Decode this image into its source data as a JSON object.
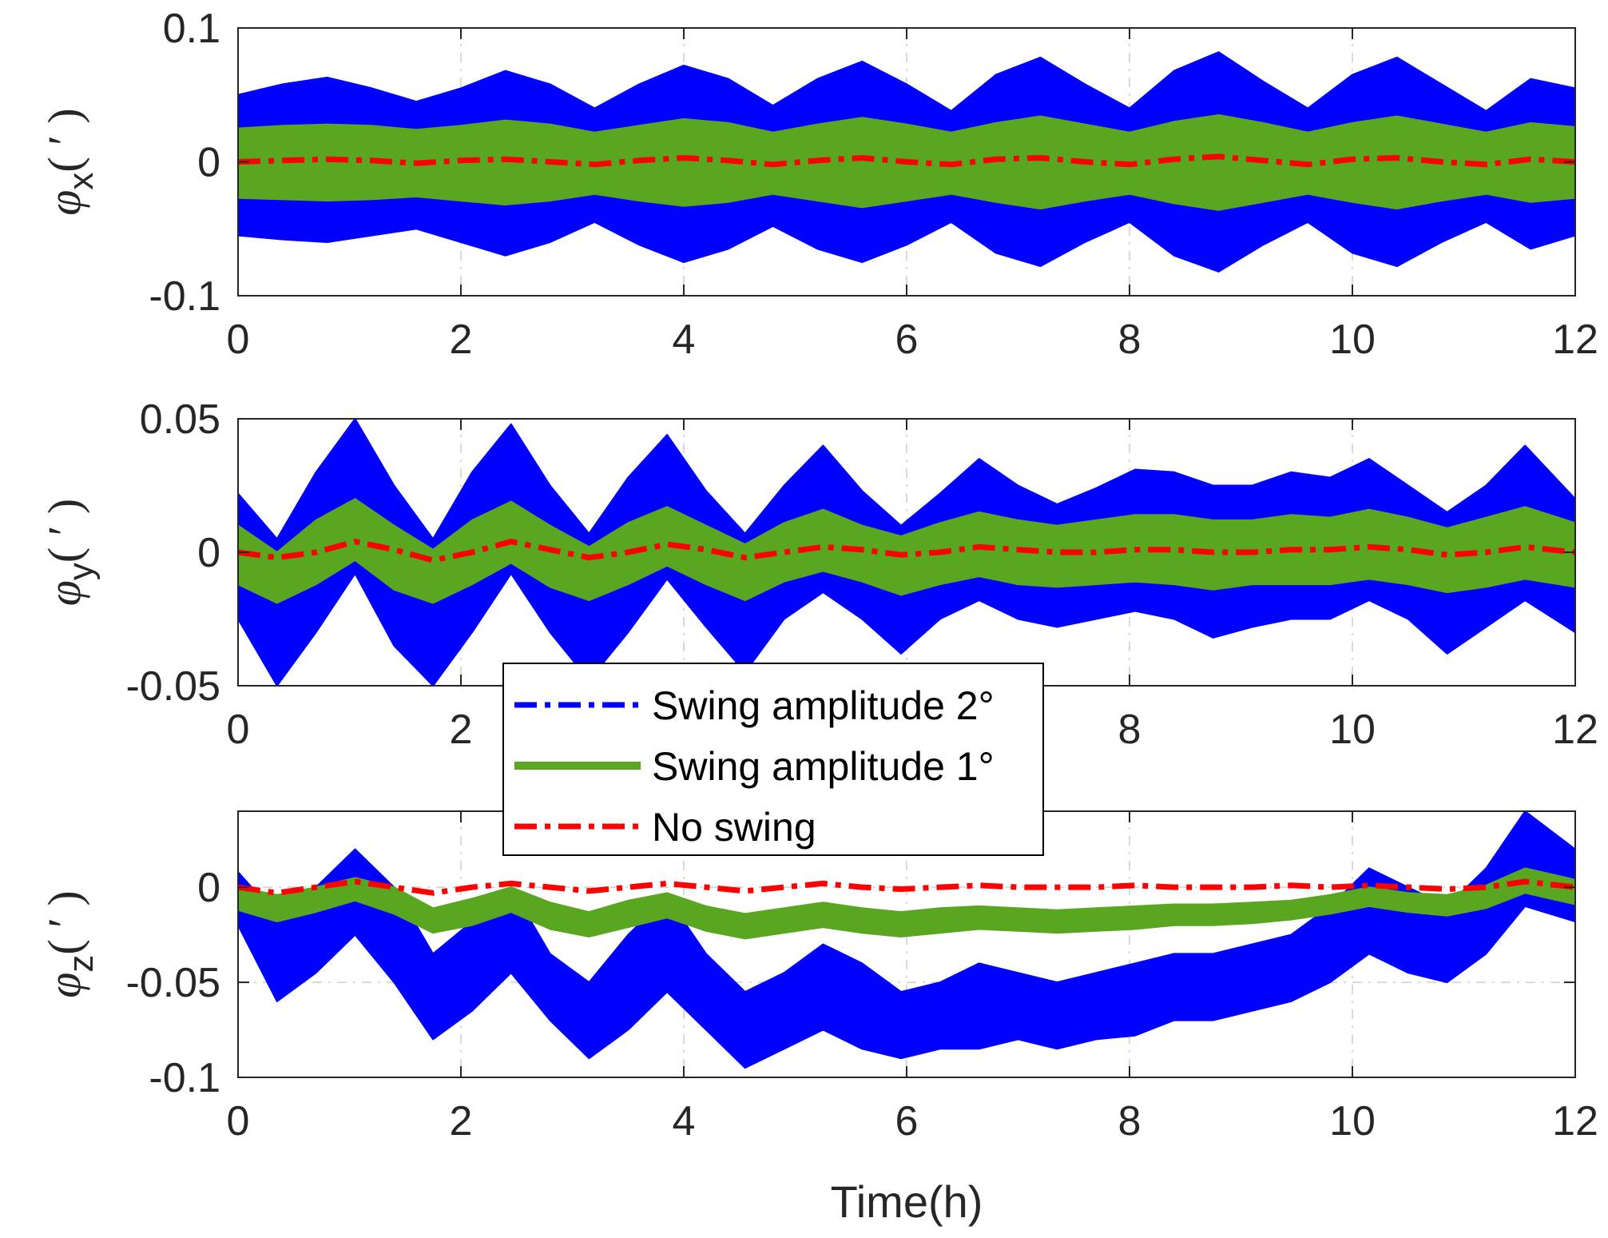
{
  "figure": {
    "xlabel": "Time(h)"
  },
  "colors": {
    "swing2": "#0000ff",
    "swing1": "#59a620",
    "noswing": "#ff0000",
    "axis": "#262626",
    "grid": "#d9d9d9"
  },
  "legend": {
    "items": [
      {
        "label": "Swing amplitude 2°",
        "series": "swing2",
        "style": "dash-dot"
      },
      {
        "label": "Swing amplitude 1°",
        "series": "swing1",
        "style": "solid"
      },
      {
        "label": "No swing",
        "series": "noswing",
        "style": "dash-dot"
      }
    ]
  },
  "chart_data": [
    {
      "type": "area",
      "ylabel_symbol": "φ",
      "ylabel_sub": "x",
      "ylabel_unit": "( ′ )",
      "xlim": [
        0,
        12
      ],
      "ylim": [
        -0.1,
        0.1
      ],
      "xticks": [
        0,
        2,
        4,
        6,
        8,
        10,
        12
      ],
      "xtick_labels": [
        "0",
        "2",
        "4",
        "6",
        "8",
        "10",
        "12"
      ],
      "yticks": [
        -0.1,
        0,
        0.1
      ],
      "ytick_labels": [
        "-0.1",
        "0",
        "0.1"
      ],
      "grid_x": true,
      "grid_y": false,
      "time_h": [
        0,
        0.4,
        0.8,
        1.2,
        1.6,
        2.0,
        2.4,
        2.8,
        3.2,
        3.6,
        4.0,
        4.4,
        4.8,
        5.2,
        5.6,
        6.0,
        6.4,
        6.8,
        7.2,
        7.6,
        8.0,
        8.4,
        8.8,
        9.2,
        9.6,
        10.0,
        10.4,
        10.8,
        11.2,
        11.6,
        12.0
      ],
      "series": [
        {
          "name": "Swing amplitude 2°",
          "upper": [
            0.05,
            0.058,
            0.063,
            0.055,
            0.045,
            0.055,
            0.068,
            0.058,
            0.04,
            0.058,
            0.072,
            0.062,
            0.042,
            0.062,
            0.075,
            0.058,
            0.038,
            0.065,
            0.078,
            0.058,
            0.04,
            0.068,
            0.082,
            0.06,
            0.04,
            0.065,
            0.078,
            0.058,
            0.038,
            0.062,
            0.055
          ],
          "lower": [
            -0.055,
            -0.058,
            -0.06,
            -0.055,
            -0.05,
            -0.06,
            -0.07,
            -0.06,
            -0.045,
            -0.062,
            -0.075,
            -0.065,
            -0.048,
            -0.065,
            -0.075,
            -0.062,
            -0.045,
            -0.068,
            -0.078,
            -0.06,
            -0.045,
            -0.07,
            -0.082,
            -0.062,
            -0.045,
            -0.068,
            -0.078,
            -0.06,
            -0.045,
            -0.065,
            -0.055
          ]
        },
        {
          "name": "Swing amplitude 1°",
          "upper": [
            0.025,
            0.027,
            0.028,
            0.027,
            0.024,
            0.027,
            0.031,
            0.028,
            0.022,
            0.027,
            0.032,
            0.029,
            0.022,
            0.028,
            0.033,
            0.028,
            0.022,
            0.029,
            0.034,
            0.028,
            0.022,
            0.03,
            0.035,
            0.029,
            0.022,
            0.029,
            0.034,
            0.028,
            0.022,
            0.029,
            0.026
          ],
          "lower": [
            -0.027,
            -0.028,
            -0.029,
            -0.028,
            -0.026,
            -0.029,
            -0.032,
            -0.029,
            -0.024,
            -0.029,
            -0.033,
            -0.03,
            -0.024,
            -0.029,
            -0.034,
            -0.029,
            -0.024,
            -0.03,
            -0.035,
            -0.029,
            -0.024,
            -0.031,
            -0.036,
            -0.03,
            -0.024,
            -0.03,
            -0.035,
            -0.029,
            -0.024,
            -0.03,
            -0.027
          ]
        },
        {
          "name": "No swing",
          "values": [
            0.0,
            0.001,
            0.002,
            0.001,
            -0.001,
            0.001,
            0.002,
            0.0,
            -0.002,
            0.001,
            0.003,
            0.001,
            -0.002,
            0.001,
            0.003,
            0.0,
            -0.002,
            0.002,
            0.003,
            0.0,
            -0.002,
            0.002,
            0.004,
            0.001,
            -0.002,
            0.002,
            0.003,
            0.0,
            -0.002,
            0.002,
            0.0
          ]
        }
      ]
    },
    {
      "type": "area",
      "ylabel_symbol": "φ",
      "ylabel_sub": "y",
      "ylabel_unit": "( ′ )",
      "xlim": [
        0,
        12
      ],
      "ylim": [
        -0.05,
        0.05
      ],
      "xticks": [
        0,
        2,
        4,
        6,
        8,
        10,
        12
      ],
      "xtick_labels": [
        "0",
        "2",
        "4",
        "6",
        "8",
        "10",
        "12"
      ],
      "yticks": [
        -0.05,
        0,
        0.05
      ],
      "ytick_labels": [
        "-0.05",
        "0",
        "0.05"
      ],
      "grid_x": true,
      "grid_y": false,
      "time_h": [
        0,
        0.35,
        0.7,
        1.05,
        1.4,
        1.75,
        2.1,
        2.45,
        2.8,
        3.15,
        3.5,
        3.85,
        4.2,
        4.55,
        4.9,
        5.25,
        5.6,
        5.95,
        6.3,
        6.65,
        7.0,
        7.35,
        7.7,
        8.05,
        8.4,
        8.75,
        9.1,
        9.45,
        9.8,
        10.15,
        10.5,
        10.85,
        11.2,
        11.55,
        12.0
      ],
      "series": [
        {
          "name": "Swing amplitude 2°",
          "upper": [
            0.022,
            0.005,
            0.03,
            0.05,
            0.025,
            0.005,
            0.03,
            0.048,
            0.025,
            0.007,
            0.028,
            0.044,
            0.023,
            0.007,
            0.025,
            0.04,
            0.023,
            0.01,
            0.022,
            0.035,
            0.025,
            0.018,
            0.024,
            0.031,
            0.03,
            0.025,
            0.025,
            0.03,
            0.028,
            0.035,
            0.025,
            0.015,
            0.025,
            0.04,
            0.02
          ],
          "lower": [
            -0.025,
            -0.05,
            -0.03,
            -0.008,
            -0.035,
            -0.05,
            -0.03,
            -0.008,
            -0.03,
            -0.048,
            -0.03,
            -0.01,
            -0.028,
            -0.045,
            -0.025,
            -0.015,
            -0.025,
            -0.038,
            -0.025,
            -0.018,
            -0.025,
            -0.028,
            -0.025,
            -0.022,
            -0.025,
            -0.032,
            -0.028,
            -0.025,
            -0.025,
            -0.018,
            -0.025,
            -0.038,
            -0.028,
            -0.018,
            -0.03
          ]
        },
        {
          "name": "Swing amplitude 1°",
          "upper": [
            0.01,
            0.0,
            0.012,
            0.02,
            0.01,
            0.001,
            0.012,
            0.019,
            0.01,
            0.002,
            0.011,
            0.017,
            0.01,
            0.003,
            0.011,
            0.016,
            0.01,
            0.006,
            0.011,
            0.015,
            0.012,
            0.01,
            0.012,
            0.014,
            0.014,
            0.012,
            0.012,
            0.014,
            0.013,
            0.016,
            0.013,
            0.009,
            0.013,
            0.017,
            0.011
          ],
          "lower": [
            -0.012,
            -0.019,
            -0.012,
            -0.003,
            -0.014,
            -0.019,
            -0.012,
            -0.004,
            -0.013,
            -0.018,
            -0.012,
            -0.005,
            -0.012,
            -0.018,
            -0.011,
            -0.007,
            -0.011,
            -0.016,
            -0.012,
            -0.009,
            -0.012,
            -0.013,
            -0.012,
            -0.011,
            -0.012,
            -0.014,
            -0.012,
            -0.012,
            -0.012,
            -0.01,
            -0.012,
            -0.015,
            -0.013,
            -0.01,
            -0.013
          ]
        },
        {
          "name": "No swing",
          "values": [
            0.0,
            -0.002,
            0.0,
            0.004,
            0.001,
            -0.003,
            0.0,
            0.004,
            0.001,
            -0.002,
            0.0,
            0.003,
            0.001,
            -0.002,
            0.0,
            0.002,
            0.001,
            -0.001,
            0.0,
            0.002,
            0.001,
            0.0,
            0.0,
            0.001,
            0.001,
            0.0,
            0.0,
            0.001,
            0.001,
            0.002,
            0.001,
            -0.001,
            0.0,
            0.002,
            0.0
          ]
        }
      ]
    },
    {
      "type": "area",
      "ylabel_symbol": "φ",
      "ylabel_sub": "z",
      "ylabel_unit": "( ′ )",
      "xlim": [
        0,
        12
      ],
      "ylim": [
        -0.1,
        0.04
      ],
      "xticks": [
        0,
        2,
        4,
        6,
        8,
        10,
        12
      ],
      "xtick_labels": [
        "0",
        "2",
        "4",
        "6",
        "8",
        "10",
        "12"
      ],
      "yticks": [
        -0.1,
        -0.05,
        0
      ],
      "ytick_labels": [
        "-0.1",
        "-0.05",
        "0"
      ],
      "grid_x": true,
      "grid_y": true,
      "time_h": [
        0,
        0.35,
        0.7,
        1.05,
        1.4,
        1.75,
        2.1,
        2.45,
        2.8,
        3.15,
        3.5,
        3.85,
        4.2,
        4.55,
        4.9,
        5.25,
        5.6,
        5.95,
        6.3,
        6.65,
        7.0,
        7.35,
        7.7,
        8.05,
        8.4,
        8.75,
        9.1,
        9.45,
        9.8,
        10.15,
        10.5,
        10.85,
        11.2,
        11.55,
        12.0
      ],
      "series": [
        {
          "name": "Swing amplitude 2°",
          "upper": [
            0.008,
            -0.015,
            0.0,
            0.02,
            0.0,
            -0.035,
            -0.018,
            0.0,
            -0.035,
            -0.05,
            -0.025,
            -0.005,
            -0.035,
            -0.055,
            -0.045,
            -0.03,
            -0.04,
            -0.055,
            -0.05,
            -0.04,
            -0.045,
            -0.05,
            -0.045,
            -0.04,
            -0.035,
            -0.035,
            -0.03,
            -0.025,
            -0.01,
            0.01,
            0.0,
            -0.01,
            0.01,
            0.04,
            0.02
          ],
          "lower": [
            -0.02,
            -0.06,
            -0.045,
            -0.025,
            -0.05,
            -0.08,
            -0.065,
            -0.045,
            -0.07,
            -0.09,
            -0.075,
            -0.055,
            -0.075,
            -0.095,
            -0.085,
            -0.075,
            -0.085,
            -0.09,
            -0.085,
            -0.085,
            -0.08,
            -0.085,
            -0.08,
            -0.078,
            -0.07,
            -0.07,
            -0.065,
            -0.06,
            -0.05,
            -0.035,
            -0.045,
            -0.05,
            -0.035,
            -0.01,
            -0.018
          ]
        },
        {
          "name": "Swing amplitude 1°",
          "upper": [
            0.0,
            -0.004,
            0.0,
            0.005,
            0.0,
            -0.011,
            -0.006,
            0.0,
            -0.008,
            -0.013,
            -0.007,
            -0.003,
            -0.01,
            -0.014,
            -0.011,
            -0.008,
            -0.011,
            -0.013,
            -0.011,
            -0.01,
            -0.011,
            -0.012,
            -0.011,
            -0.01,
            -0.009,
            -0.009,
            -0.008,
            -0.007,
            -0.004,
            0.0,
            -0.003,
            -0.004,
            0.001,
            0.01,
            0.004
          ],
          "lower": [
            -0.012,
            -0.018,
            -0.013,
            -0.007,
            -0.014,
            -0.024,
            -0.02,
            -0.013,
            -0.022,
            -0.026,
            -0.021,
            -0.016,
            -0.023,
            -0.027,
            -0.024,
            -0.021,
            -0.024,
            -0.026,
            -0.024,
            -0.022,
            -0.023,
            -0.024,
            -0.023,
            -0.022,
            -0.02,
            -0.02,
            -0.019,
            -0.017,
            -0.014,
            -0.01,
            -0.013,
            -0.015,
            -0.011,
            -0.003,
            -0.009
          ]
        },
        {
          "name": "No swing",
          "values": [
            0.0,
            -0.003,
            0.0,
            0.003,
            0.0,
            -0.003,
            0.0,
            0.002,
            0.0,
            -0.002,
            0.0,
            0.002,
            0.0,
            -0.002,
            0.0,
            0.002,
            0.0,
            -0.001,
            0.0,
            0.001,
            0.0,
            0.0,
            0.0,
            0.001,
            0.0,
            0.0,
            0.0,
            0.001,
            0.0,
            0.001,
            0.0,
            -0.001,
            0.0,
            0.003,
            0.0
          ]
        }
      ]
    }
  ]
}
